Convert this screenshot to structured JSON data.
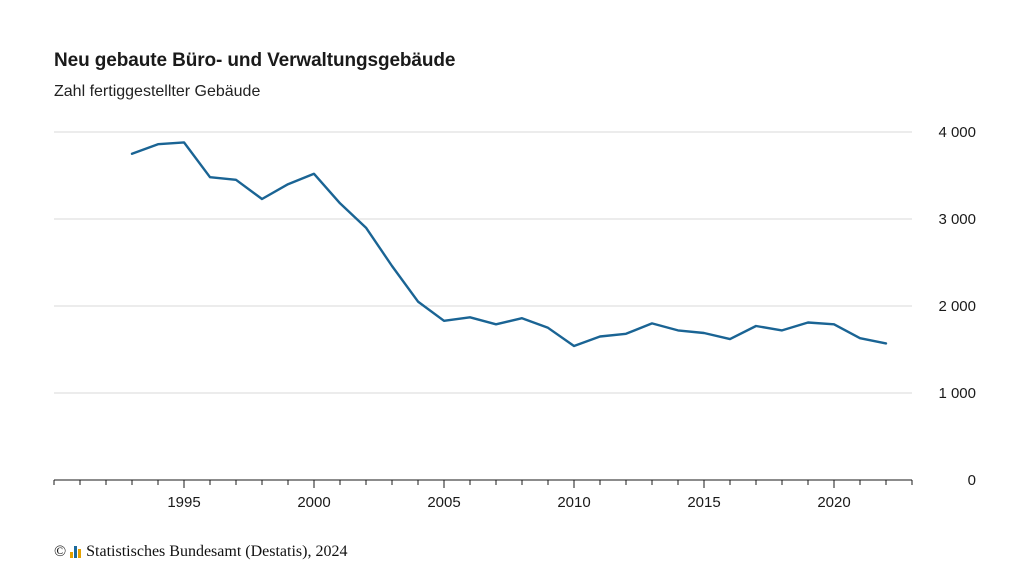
{
  "header": {
    "title": "Neu gebaute Büro- und Verwaltungsgebäude",
    "subtitle": "Zahl fertiggestellter Gebäude"
  },
  "footer": {
    "copyright_symbol": "©",
    "source": "Statistisches Bundesamt (Destatis), 2024",
    "logo_colors": [
      "#e4a100",
      "#1c6a9c",
      "#e4a100"
    ]
  },
  "colors": {
    "line": "#1a6494",
    "grid": "#d9d9d9",
    "axis": "#1a1a1a"
  },
  "chart_data": {
    "type": "line",
    "title": "Neu gebaute Büro- und Verwaltungsgebäude",
    "subtitle": "Zahl fertiggestellter Gebäude",
    "xlabel": "",
    "ylabel": "",
    "x": [
      1993,
      1994,
      1995,
      1996,
      1997,
      1998,
      1999,
      2000,
      2001,
      2002,
      2003,
      2004,
      2005,
      2006,
      2007,
      2008,
      2009,
      2010,
      2011,
      2012,
      2013,
      2014,
      2015,
      2016,
      2017,
      2018,
      2019,
      2020,
      2021,
      2022
    ],
    "series": [
      {
        "values": [
          3750,
          3860,
          3880,
          3480,
          3450,
          3230,
          3400,
          3520,
          3180,
          2900,
          2460,
          2050,
          1830,
          1870,
          1790,
          1860,
          1750,
          1540,
          1650,
          1680,
          1800,
          1720,
          1690,
          1620,
          1770,
          1720,
          1810,
          1790,
          1630,
          1570
        ]
      }
    ],
    "xlim": [
      1990,
      2023
    ],
    "ylim": [
      0,
      4000
    ],
    "x_ticks": [
      1995,
      2000,
      2005,
      2010,
      2015,
      2020
    ],
    "x_tick_labels": [
      "1995",
      "2000",
      "2005",
      "2010",
      "2015",
      "2020"
    ],
    "y_ticks": [
      0,
      1000,
      2000,
      3000,
      4000
    ],
    "y_tick_labels": [
      "0",
      "1 000",
      "2 000",
      "3 000",
      "4 000"
    ],
    "y_axis_position": "right",
    "grid": true,
    "legend": "none"
  }
}
